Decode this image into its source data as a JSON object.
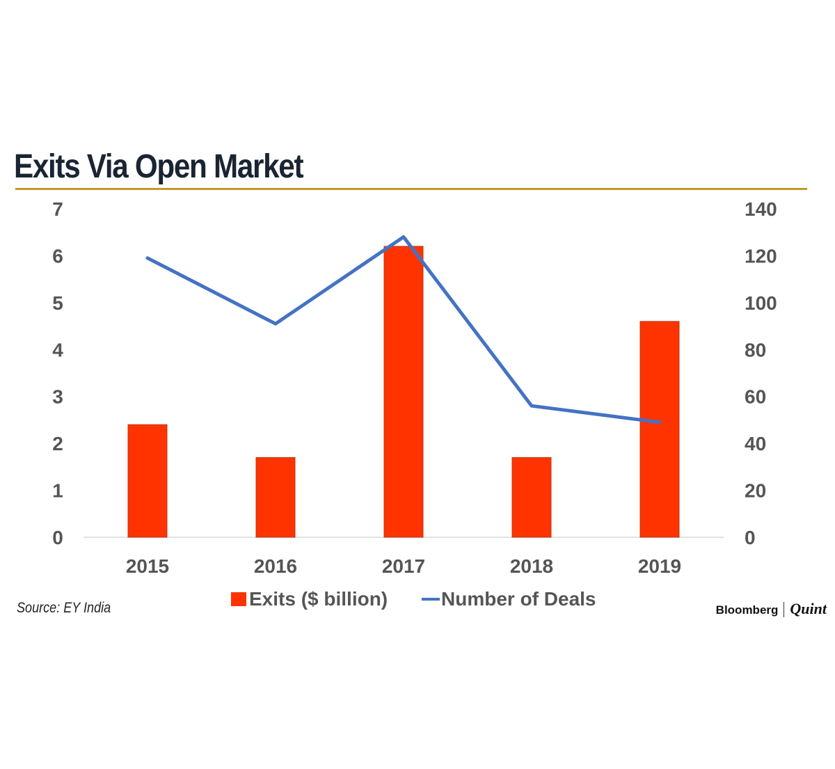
{
  "chart_data": {
    "type": "bar+line",
    "title": "Exits Via Open Market",
    "categories": [
      "2015",
      "2016",
      "2017",
      "2018",
      "2019"
    ],
    "series": [
      {
        "name": "Exits ($ billion)",
        "type": "bar",
        "axis": "left",
        "color": "#ff3300",
        "values": [
          2.4,
          1.7,
          6.2,
          1.7,
          4.6
        ]
      },
      {
        "name": "Number of Deals",
        "type": "line",
        "axis": "right",
        "color": "#4472c4",
        "values": [
          119,
          91,
          128,
          56,
          49
        ]
      }
    ],
    "y_left": {
      "min": 0,
      "max": 7,
      "ticks": [
        "0",
        "1",
        "2",
        "3",
        "4",
        "5",
        "6",
        "7"
      ]
    },
    "y_right": {
      "min": 0,
      "max": 140,
      "ticks": [
        "0",
        "20",
        "40",
        "60",
        "80",
        "100",
        "120",
        "140"
      ]
    },
    "grid": false,
    "legend_position": "bottom"
  },
  "footer": {
    "source": "Source: EY India",
    "brand_primary": "Bloomberg",
    "brand_secondary": "Quint"
  },
  "colors": {
    "title": "#1a2433",
    "rule": "#c19a2a",
    "tick_text": "#555555"
  }
}
